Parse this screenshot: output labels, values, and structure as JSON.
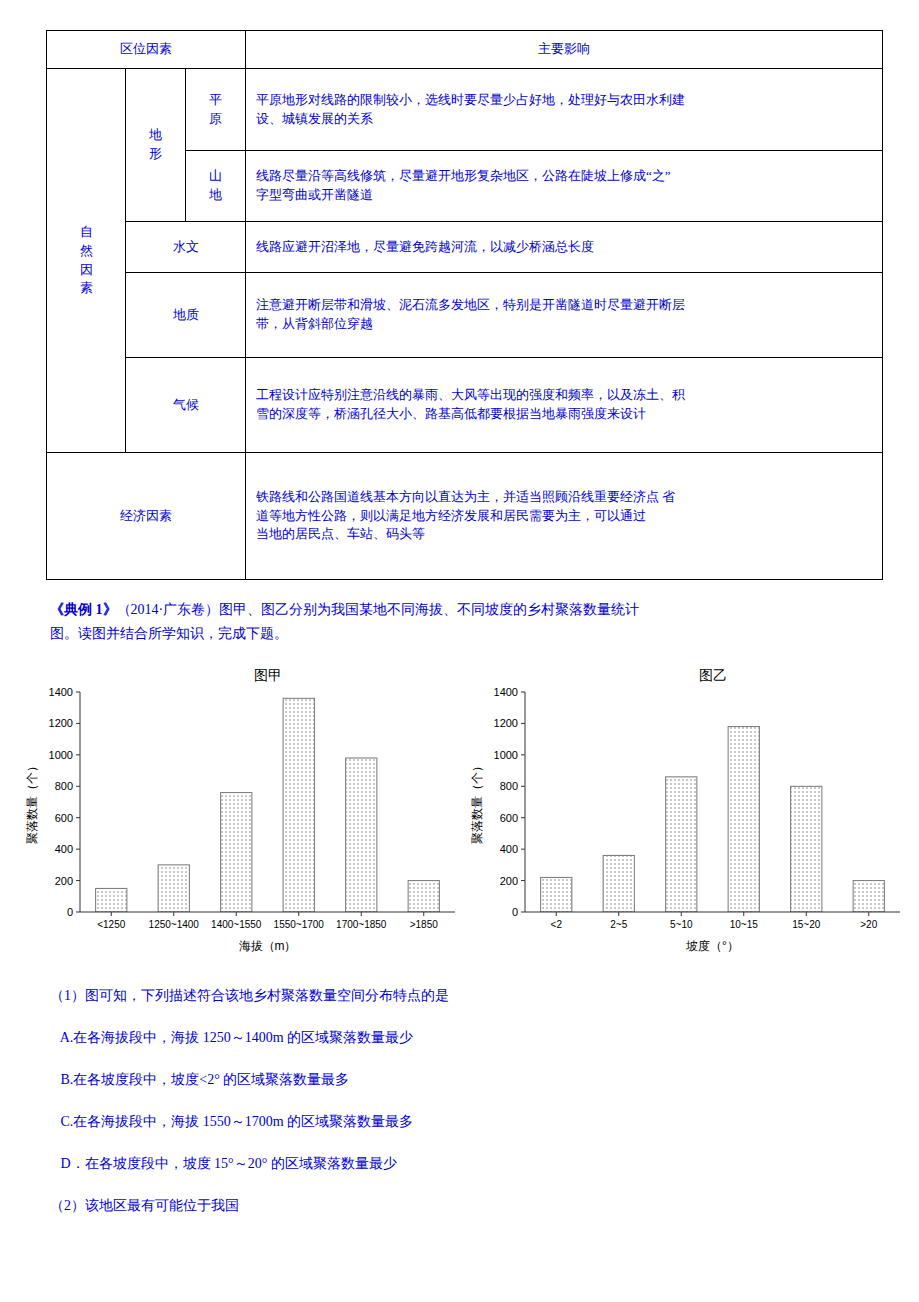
{
  "text_color": "#0000CD",
  "table": {
    "header_col1": "区位因素",
    "header_col2": "主要影响",
    "label_ziran": "自\n然\n因\n素",
    "label_dixing": "地\n形",
    "label_pingyuan": "平\n原",
    "label_shandi": "山\n地",
    "label_shuiwen": "水文",
    "label_dizhi": "地质",
    "label_qihou": "气候",
    "label_jingji": "经济因素",
    "content_pingyuan": "平原地形对线路的限制较小，选线时要尽量少占好地，处理好与农田水利建\n设、城镇发展的关系",
    "content_shandi": "线路尽量沿等高线修筑，尽量避开地形复杂地区，公路在陡坡上修成“之”\n字型弯曲或开凿隧道",
    "content_shuiwen": "线路应避开沼泽地，尽量避免跨越河流，以减少桥涵总长度",
    "content_dizhi": "注意避开断层带和滑坡、泥石流多发地区，特别是开凿隧道时尽量避开断层\n带，从背斜部位穿越",
    "content_qihou": "工程设计应特别注意沿线的暴雨、大风等出现的强度和频率，以及冻土、积\n雪的深度等，桥涵孔径大小、路基高低都要根据当地暴雨强度来设计",
    "content_jingji": "铁路线和公路国道线基本方向以直达为主，并适当照顾沿线重要经济点 省\n道等地方性公路，则以满足地方经济发展和居民需要为主，可以通过\n当地的居民点、车站、码头等"
  },
  "example": {
    "bold": "《典例 1》",
    "rest": "（2014·广东卷）图甲、图乙分别为我国某地不同海拔、不同坡度的乡村聚落数量统计",
    "line2": "图。读图并结合所学知识，完成下题。"
  },
  "chart_data": [
    {
      "type": "bar",
      "title": "图甲",
      "xlabel": "海拔（m）",
      "ylabel": "聚落数量（个）",
      "categories": [
        "<1250",
        "1250~1400",
        "1400~1550",
        "1550~1700",
        "1700~1850",
        ">1850"
      ],
      "values": [
        150,
        300,
        760,
        1360,
        980,
        200
      ],
      "color": "#777777",
      "ylim": [
        0,
        1400
      ],
      "yticks": [
        0,
        200,
        400,
        600,
        800,
        1000,
        1200,
        1400
      ],
      "grid": false
    },
    {
      "type": "bar",
      "title": "图乙",
      "xlabel": "坡度（°）",
      "ylabel": "聚落数量（个）",
      "categories": [
        "<2",
        "2~5",
        "5~10",
        "10~15",
        "15~20",
        ">20"
      ],
      "values": [
        220,
        360,
        860,
        1180,
        800,
        200
      ],
      "color": "#777777",
      "ylim": [
        0,
        1400
      ],
      "yticks": [
        0,
        200,
        400,
        600,
        800,
        1000,
        1200,
        1400
      ],
      "grid": false
    }
  ],
  "questions": [
    "（1）图可知，下列描述符合该地乡村聚落数量空间分布特点的是",
    "   A.在各海拔段中，海拔 1250～1400m 的区域聚落数量最少",
    "   B.在各坡度段中，坡度<2° 的区域聚落数量最多",
    "   C.在各海拔段中，海拔 1550～1700m 的区域聚落数量最多",
    "   D．在各坡度段中，坡度 15°～20° 的区域聚落数量最少",
    "（2）该地区最有可能位于我国"
  ]
}
